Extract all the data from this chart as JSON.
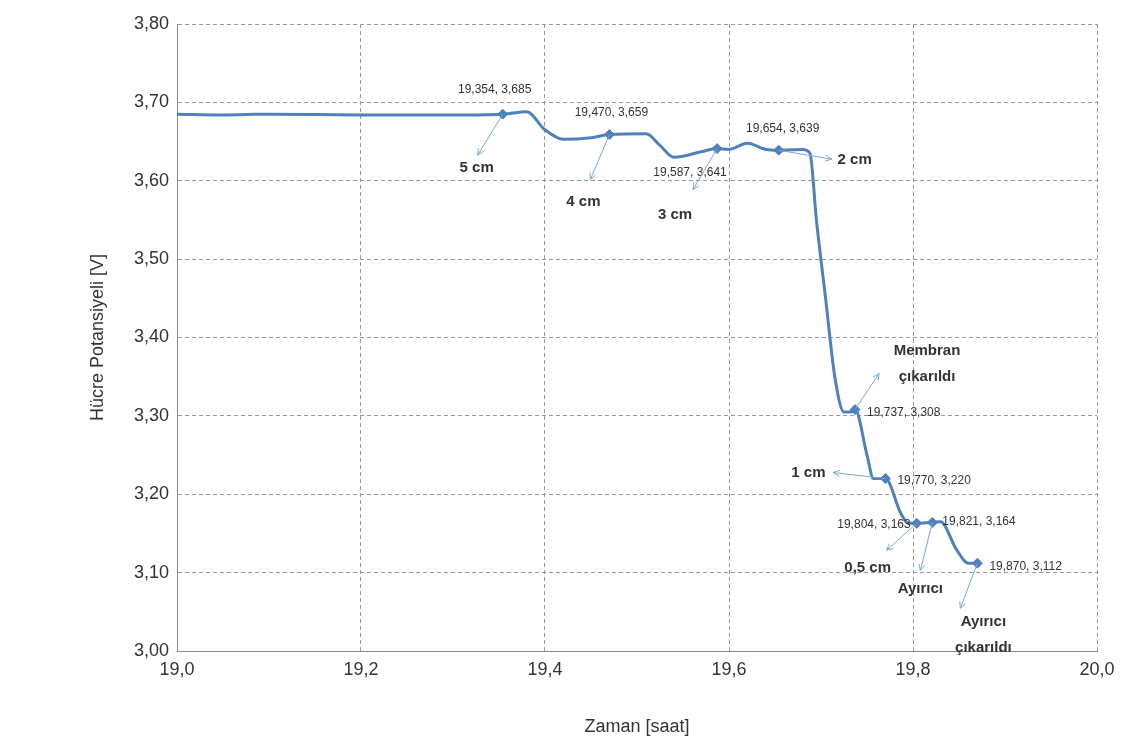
{
  "chart_data": {
    "type": "line",
    "xlabel": "Zaman [saat]",
    "ylabel": "Hücre Potansiyeli [V]",
    "xlim": [
      19.0,
      20.0
    ],
    "ylim": [
      3.0,
      3.8
    ],
    "xticks": [
      {
        "value": 19.0,
        "label": "19,0"
      },
      {
        "value": 19.2,
        "label": "19,2"
      },
      {
        "value": 19.4,
        "label": "19,4"
      },
      {
        "value": 19.6,
        "label": "19,6"
      },
      {
        "value": 19.8,
        "label": "19,8"
      },
      {
        "value": 20.0,
        "label": "20,0"
      }
    ],
    "yticks": [
      {
        "value": 3.0,
        "label": "3,00"
      },
      {
        "value": 3.1,
        "label": "3,10"
      },
      {
        "value": 3.2,
        "label": "3,20"
      },
      {
        "value": 3.3,
        "label": "3,30"
      },
      {
        "value": 3.4,
        "label": "3,40"
      },
      {
        "value": 3.5,
        "label": "3,50"
      },
      {
        "value": 3.6,
        "label": "3,60"
      },
      {
        "value": 3.7,
        "label": "3,70"
      },
      {
        "value": 3.8,
        "label": "3,80"
      }
    ],
    "grid": true,
    "legend": false,
    "series": [
      {
        "type": "line",
        "color": "#4f81bd",
        "marker": "none",
        "x": [
          19.0,
          19.05,
          19.1,
          19.2,
          19.3,
          19.354,
          19.38,
          19.4,
          19.42,
          19.45,
          19.47,
          19.51,
          19.525,
          19.54,
          19.57,
          19.587,
          19.6,
          19.62,
          19.64,
          19.654,
          19.68,
          19.688,
          19.695,
          19.705,
          19.715,
          19.725,
          19.733,
          19.737,
          19.75,
          19.757,
          19.77,
          19.787,
          19.795,
          19.804,
          19.821,
          19.83,
          19.847,
          19.86,
          19.87
        ],
        "values": [
          3.685,
          3.684,
          3.685,
          3.684,
          3.684,
          3.685,
          3.688,
          3.665,
          3.653,
          3.655,
          3.659,
          3.66,
          3.645,
          3.63,
          3.637,
          3.641,
          3.64,
          3.648,
          3.64,
          3.639,
          3.64,
          3.635,
          3.55,
          3.45,
          3.35,
          3.305,
          3.305,
          3.308,
          3.25,
          3.22,
          3.22,
          3.175,
          3.163,
          3.163,
          3.164,
          3.165,
          3.13,
          3.112,
          3.112
        ]
      },
      {
        "type": "scatter",
        "color": "#4f81bd",
        "marker": "diamond",
        "x": [
          19.354,
          19.47,
          19.587,
          19.654,
          19.737,
          19.77,
          19.804,
          19.821,
          19.87
        ],
        "values": [
          3.685,
          3.659,
          3.641,
          3.639,
          3.308,
          3.22,
          3.163,
          3.164,
          3.112
        ],
        "value_labels": [
          "19,354, 3,685",
          "19,470, 3,659",
          "19,587, 3,641",
          "19,654, 3,639",
          "19,737, 3,308",
          "19,770, 3,220",
          "19,804, 3,163",
          "19,821, 3,164",
          "19,870, 3,112"
        ]
      }
    ],
    "annotations": [
      {
        "text": "5 cm",
        "x": 19.354,
        "y": 3.685
      },
      {
        "text": "4 cm",
        "x": 19.47,
        "y": 3.659
      },
      {
        "text": "3 cm",
        "x": 19.587,
        "y": 3.641
      },
      {
        "text": "2 cm",
        "x": 19.654,
        "y": 3.639
      },
      {
        "text": "Membran çıkarıldı",
        "x": 19.737,
        "y": 3.308
      },
      {
        "text": "1 cm",
        "x": 19.77,
        "y": 3.22
      },
      {
        "text": "0,5 cm",
        "x": 19.804,
        "y": 3.163
      },
      {
        "text": "Ayırıcı",
        "x": 19.821,
        "y": 3.164
      },
      {
        "text": "Ayırıcı çıkarıldı",
        "x": 19.87,
        "y": 3.112
      }
    ]
  }
}
